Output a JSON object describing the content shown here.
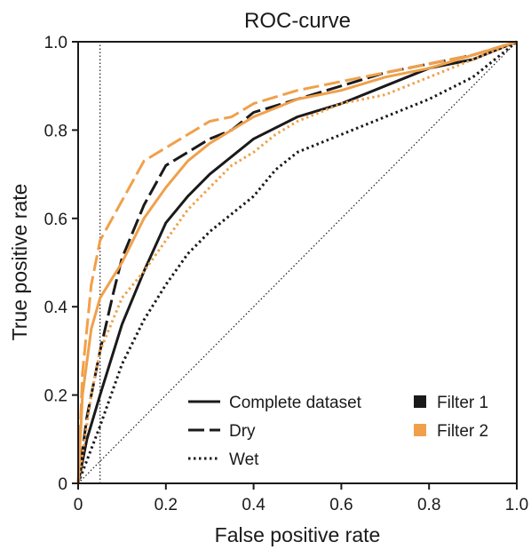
{
  "chart_data": {
    "type": "line",
    "title": "ROC-curve",
    "xlabel": "False positive rate",
    "ylabel": "True positive rate",
    "xlim": [
      0,
      1
    ],
    "ylim": [
      0,
      1
    ],
    "xticks": [
      "0",
      "0.2",
      "0.4",
      "0.6",
      "0.8",
      "1.0"
    ],
    "yticks": [
      "0",
      "0.2",
      "0.4",
      "0.6",
      "0.8",
      "1.0"
    ],
    "grid": false,
    "legend_position": "bottom-right",
    "legend_styles": [
      "Complete dataset",
      "Dry",
      "Wet"
    ],
    "legend_filters": [
      "Filter 1",
      "Filter 2"
    ],
    "colors": {
      "Filter 1": "#1a1a1a",
      "Filter 2": "#f0a04b"
    },
    "reference_lines": [
      {
        "kind": "diagonal",
        "style": "dotted"
      },
      {
        "kind": "vertical",
        "x": 0.05,
        "style": "dotted"
      }
    ],
    "series": [
      {
        "filter": "Filter 1",
        "dataset": "Complete dataset",
        "style": "solid",
        "x": [
          0,
          0.02,
          0.05,
          0.1,
          0.15,
          0.2,
          0.25,
          0.3,
          0.35,
          0.4,
          0.5,
          0.6,
          0.7,
          0.8,
          0.9,
          1.0
        ],
        "y": [
          0,
          0.1,
          0.2,
          0.36,
          0.48,
          0.59,
          0.65,
          0.7,
          0.74,
          0.78,
          0.83,
          0.86,
          0.9,
          0.94,
          0.96,
          1.0
        ]
      },
      {
        "filter": "Filter 1",
        "dataset": "Dry",
        "style": "dashed",
        "x": [
          0,
          0.02,
          0.05,
          0.08,
          0.1,
          0.15,
          0.2,
          0.25,
          0.3,
          0.35,
          0.4,
          0.5,
          0.6,
          0.7,
          0.8,
          0.9,
          1.0
        ],
        "y": [
          0,
          0.15,
          0.3,
          0.43,
          0.51,
          0.63,
          0.72,
          0.75,
          0.78,
          0.8,
          0.84,
          0.87,
          0.9,
          0.93,
          0.95,
          0.97,
          1.0
        ]
      },
      {
        "filter": "Filter 1",
        "dataset": "Wet",
        "style": "dotted",
        "x": [
          0,
          0.05,
          0.1,
          0.15,
          0.2,
          0.25,
          0.3,
          0.35,
          0.4,
          0.45,
          0.5,
          0.6,
          0.7,
          0.8,
          0.9,
          1.0
        ],
        "y": [
          0,
          0.13,
          0.27,
          0.37,
          0.45,
          0.52,
          0.57,
          0.61,
          0.65,
          0.71,
          0.75,
          0.79,
          0.83,
          0.87,
          0.92,
          1.0
        ]
      },
      {
        "filter": "Filter 2",
        "dataset": "Complete dataset",
        "style": "solid",
        "x": [
          0,
          0.01,
          0.03,
          0.05,
          0.1,
          0.15,
          0.2,
          0.25,
          0.3,
          0.35,
          0.4,
          0.5,
          0.6,
          0.7,
          0.8,
          0.9,
          1.0
        ],
        "y": [
          0,
          0.2,
          0.35,
          0.42,
          0.5,
          0.6,
          0.67,
          0.73,
          0.77,
          0.8,
          0.83,
          0.87,
          0.89,
          0.92,
          0.94,
          0.97,
          1.0
        ]
      },
      {
        "filter": "Filter 2",
        "dataset": "Dry",
        "style": "dashed",
        "x": [
          0,
          0.01,
          0.03,
          0.05,
          0.1,
          0.15,
          0.2,
          0.25,
          0.3,
          0.35,
          0.4,
          0.5,
          0.6,
          0.7,
          0.8,
          0.9,
          1.0
        ],
        "y": [
          0,
          0.25,
          0.45,
          0.55,
          0.64,
          0.73,
          0.76,
          0.79,
          0.82,
          0.83,
          0.86,
          0.89,
          0.91,
          0.93,
          0.95,
          0.97,
          1.0
        ]
      },
      {
        "filter": "Filter 2",
        "dataset": "Wet",
        "style": "dotted",
        "x": [
          0,
          0.03,
          0.05,
          0.1,
          0.15,
          0.2,
          0.25,
          0.3,
          0.35,
          0.4,
          0.45,
          0.5,
          0.6,
          0.7,
          0.8,
          0.9,
          1.0
        ],
        "y": [
          0,
          0.2,
          0.3,
          0.42,
          0.48,
          0.55,
          0.62,
          0.67,
          0.72,
          0.75,
          0.79,
          0.82,
          0.86,
          0.88,
          0.92,
          0.96,
          1.0
        ]
      }
    ]
  }
}
